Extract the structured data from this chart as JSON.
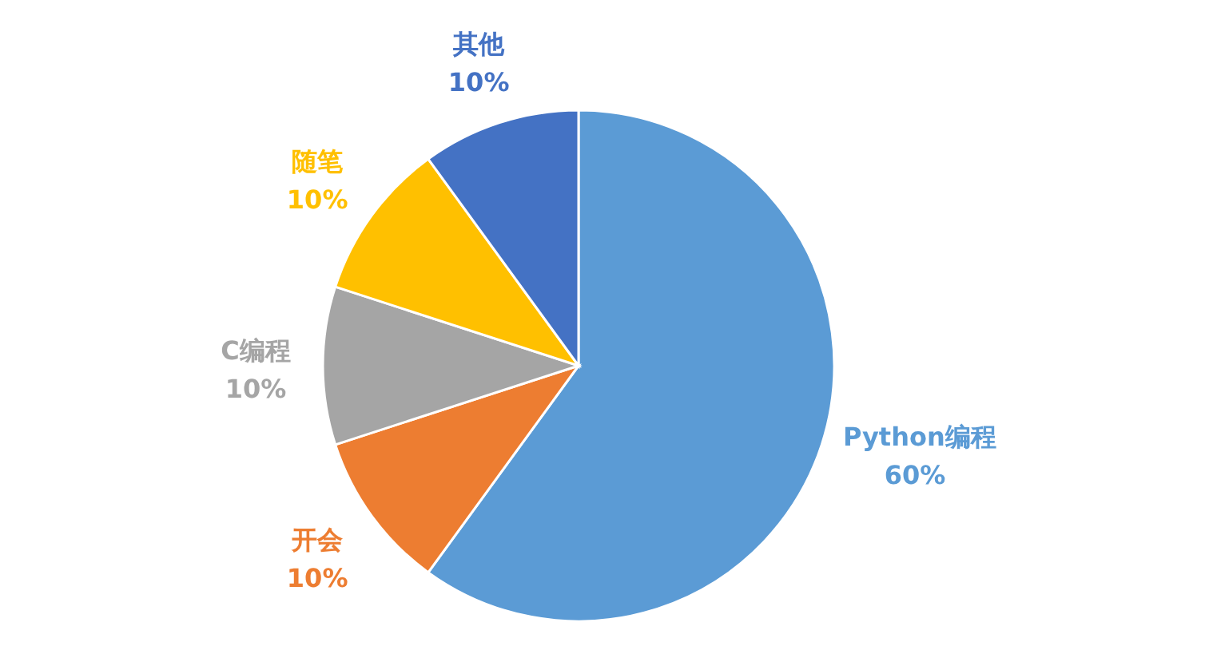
{
  "chart_data": {
    "type": "pie",
    "categories": [
      "Python编程",
      "开会",
      "C编程",
      "随笔",
      "其他"
    ],
    "values": [
      60,
      10,
      10,
      10,
      10
    ],
    "value_labels": [
      "60%",
      "10%",
      "10%",
      "10%",
      "10%"
    ],
    "colors": [
      "#5b9bd5",
      "#ed7d31",
      "#a5a5a5",
      "#ffc000",
      "#4472c4"
    ]
  }
}
